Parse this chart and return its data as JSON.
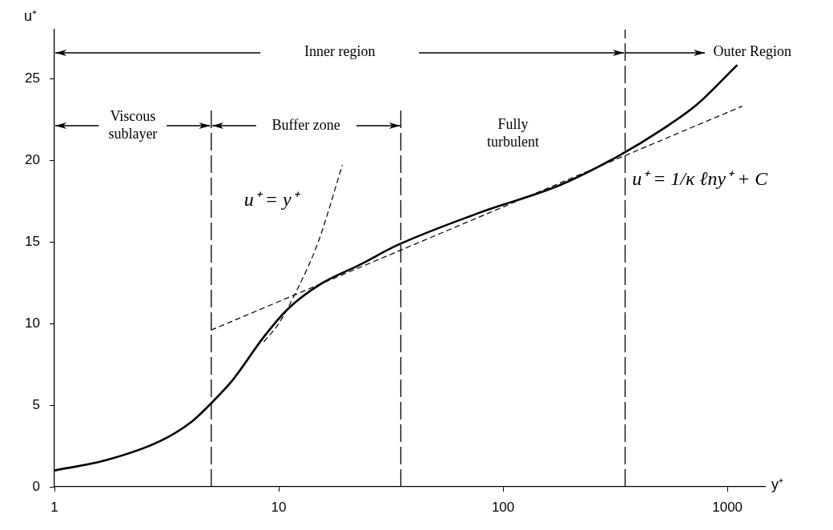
{
  "chart_data": {
    "type": "line",
    "xlabel": "y⁺",
    "ylabel": "u⁺",
    "log": "x",
    "xlim": [
      1,
      1470
    ],
    "xticks": [
      1,
      10,
      100,
      1000
    ],
    "ylim": [
      0,
      28
    ],
    "yticks": [
      0,
      5,
      10,
      15,
      20,
      25
    ],
    "grid": false,
    "legend": false,
    "marker": "none",
    "series": [
      {
        "color": "#000000",
        "line_style": "solid",
        "x": [
          1,
          1.67,
          2.96,
          4.1,
          4.9,
          6.2,
          8.6,
          11,
          15.3,
          23,
          33.8,
          79,
          181,
          321,
          527,
          730,
          1100
        ],
        "values": [
          1.0,
          1.6,
          2.8,
          4.0,
          5.0,
          6.5,
          9.2,
          10.9,
          12.4,
          13.6,
          14.8,
          16.8,
          18.5,
          20.2,
          22.0,
          23.4,
          25.8
        ]
      },
      {
        "color": "#000000",
        "line_style": "dashed",
        "x": [
          8.6,
          10,
          12,
          15,
          19.2
        ],
        "values": [
          8.9,
          10,
          12,
          15,
          19.7
        ]
      },
      {
        "color": "#000000",
        "line_style": "dashed",
        "x": [
          5,
          1160
        ],
        "values": [
          9.6,
          23.3
        ]
      }
    ],
    "ref_lines": [
      {
        "axis": "x",
        "value": 5,
        "color": "#000000",
        "line_style": "dashed"
      },
      {
        "axis": "x",
        "value": 35,
        "color": "#000000",
        "line_style": "dashed"
      },
      {
        "axis": "x",
        "value": 350,
        "color": "#000000",
        "line_style": "dashed"
      }
    ],
    "annotations": [
      "Inner region",
      {
        "text": "Outer Region",
        "x": 350,
        "y": 26.6
      },
      {
        "text": "Viscous sublayer",
        "x": 5,
        "y": 22.1
      },
      {
        "text": "Buffer zone",
        "x": 35,
        "y": 22.1
      },
      "Fully turbulent",
      "u⁺ = y⁺",
      "u⁺ = 1/κ ℓny⁺ + C"
    ]
  }
}
